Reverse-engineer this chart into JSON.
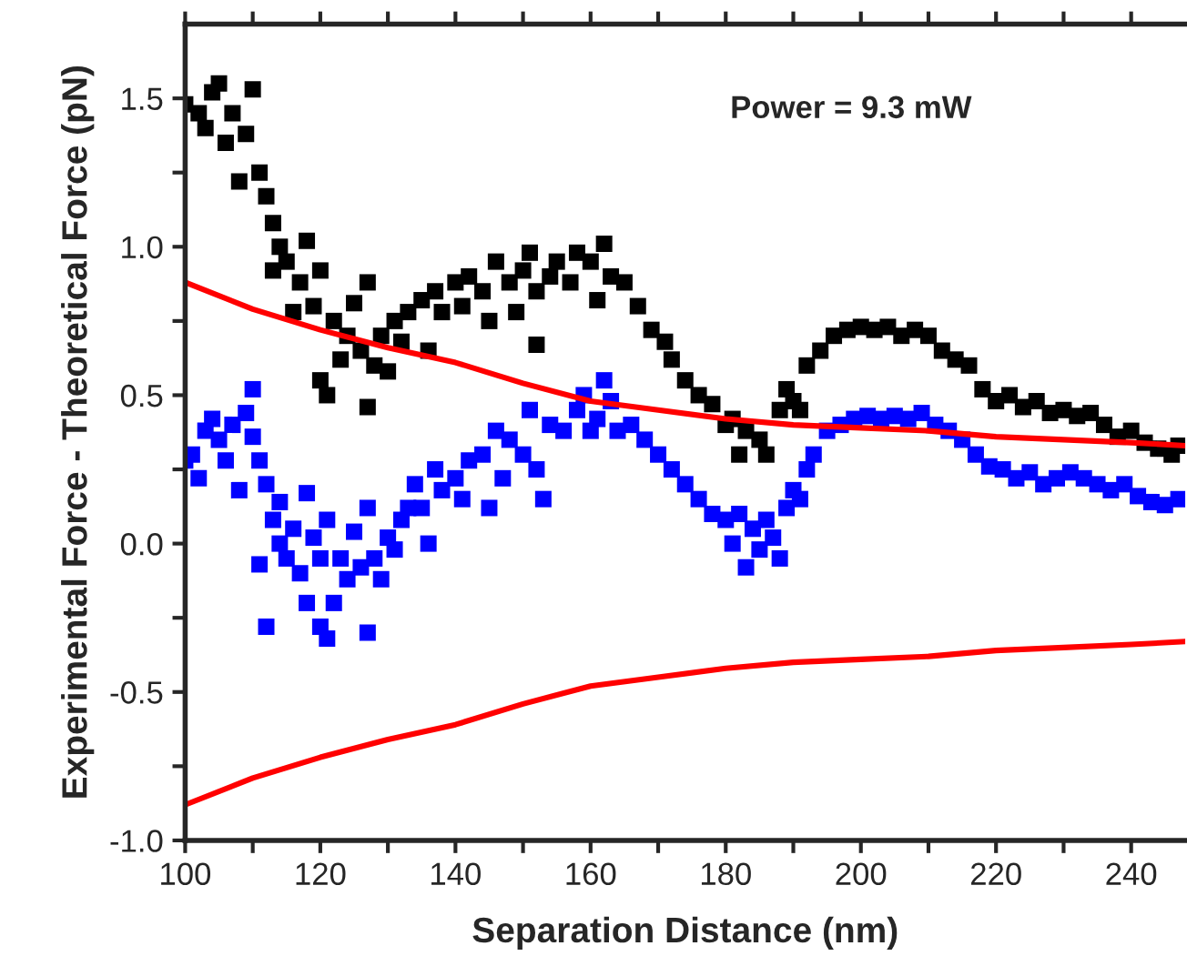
{
  "chart_data": {
    "type": "scatter",
    "xlabel": "Separation Distance (nm)",
    "ylabel": "Experimental Force - Theoretical Force (pN)",
    "annotations": [
      "Power = 9.3 mW"
    ],
    "xlim": [
      100,
      248
    ],
    "ylim": [
      -1.0,
      1.75
    ],
    "xticks": [
      100,
      {
        "value": 110,
        "label": null
      },
      120,
      {
        "value": 130,
        "label": null
      },
      140,
      {
        "value": 150,
        "label": null
      },
      160,
      {
        "value": 170,
        "label": null
      },
      180,
      {
        "value": 190,
        "label": null
      },
      200,
      {
        "value": 210,
        "label": null
      },
      220,
      {
        "value": 230,
        "label": null
      },
      240
    ],
    "yticks": [
      {
        "value": -1.0,
        "label": "-1.0"
      },
      {
        "value": -0.75,
        "label": null
      },
      {
        "value": -0.5,
        "label": "-0.5"
      },
      {
        "value": -0.25,
        "label": null
      },
      {
        "value": 0.0,
        "label": "0.0"
      },
      {
        "value": 0.25,
        "label": null
      },
      {
        "value": 0.5,
        "label": "0.5"
      },
      {
        "value": 0.75,
        "label": null
      },
      {
        "value": 1.0,
        "label": "1.0"
      },
      {
        "value": 1.25,
        "label": null
      },
      {
        "value": 1.5,
        "label": "1.5"
      }
    ],
    "grid": false,
    "marker": "square",
    "series": [
      {
        "color": "#000000",
        "x": [
          100,
          102,
          103,
          104,
          105,
          106,
          107,
          108,
          109,
          110,
          111,
          112,
          113,
          113,
          114,
          115,
          116,
          117,
          118,
          119,
          120,
          120,
          121,
          122,
          123,
          124,
          125,
          126,
          127,
          127,
          128,
          129,
          130,
          131,
          132,
          133,
          135,
          136,
          137,
          138,
          140,
          141,
          142,
          144,
          145,
          146,
          148,
          149,
          150,
          151,
          152,
          152,
          154,
          155,
          157,
          158,
          160,
          161,
          162,
          163,
          165,
          167,
          169,
          171,
          172,
          174,
          176,
          178,
          180,
          181,
          182,
          183,
          185,
          186,
          188,
          189,
          190,
          191,
          192,
          194,
          196,
          198,
          200,
          202,
          204,
          206,
          208,
          210,
          212,
          214,
          216,
          218,
          220,
          222,
          224,
          226,
          228,
          230,
          232,
          234,
          236,
          238,
          240,
          242,
          244,
          246,
          247
        ],
        "values": [
          1.48,
          1.45,
          1.4,
          1.52,
          1.55,
          1.35,
          1.45,
          1.22,
          1.38,
          1.53,
          1.25,
          1.17,
          1.08,
          0.92,
          1.0,
          0.95,
          0.78,
          0.88,
          1.02,
          0.8,
          0.92,
          0.55,
          0.5,
          0.75,
          0.62,
          0.7,
          0.81,
          0.65,
          0.88,
          0.46,
          0.6,
          0.7,
          0.58,
          0.75,
          0.68,
          0.78,
          0.82,
          0.65,
          0.85,
          0.78,
          0.88,
          0.8,
          0.9,
          0.85,
          0.75,
          0.95,
          0.88,
          0.78,
          0.92,
          0.98,
          0.85,
          0.67,
          0.9,
          0.95,
          0.88,
          0.98,
          0.95,
          0.82,
          1.01,
          0.9,
          0.88,
          0.8,
          0.72,
          0.68,
          0.62,
          0.55,
          0.5,
          0.47,
          0.4,
          0.42,
          0.3,
          0.38,
          0.35,
          0.3,
          0.45,
          0.52,
          0.48,
          0.45,
          0.6,
          0.65,
          0.7,
          0.72,
          0.73,
          0.72,
          0.73,
          0.7,
          0.72,
          0.7,
          0.65,
          0.62,
          0.6,
          0.52,
          0.48,
          0.5,
          0.46,
          0.48,
          0.44,
          0.45,
          0.43,
          0.44,
          0.4,
          0.36,
          0.38,
          0.34,
          0.32,
          0.3,
          0.33
        ]
      },
      {
        "color": "#0000ff",
        "x": [
          100,
          101,
          102,
          103,
          104,
          105,
          106,
          107,
          108,
          109,
          110,
          110,
          111,
          111,
          112,
          112,
          113,
          114,
          114,
          115,
          116,
          117,
          118,
          118,
          119,
          120,
          120,
          121,
          121,
          122,
          123,
          124,
          125,
          126,
          127,
          127,
          128,
          129,
          130,
          131,
          132,
          133,
          134,
          135,
          136,
          137,
          138,
          140,
          141,
          142,
          144,
          145,
          146,
          147,
          148,
          150,
          151,
          152,
          153,
          154,
          156,
          158,
          159,
          160,
          161,
          162,
          163,
          164,
          166,
          168,
          170,
          172,
          174,
          176,
          178,
          180,
          181,
          182,
          183,
          184,
          185,
          186,
          187,
          188,
          189,
          190,
          191,
          192,
          193,
          195,
          197,
          199,
          201,
          203,
          205,
          207,
          209,
          211,
          213,
          215,
          217,
          219,
          221,
          223,
          225,
          227,
          229,
          231,
          233,
          235,
          237,
          239,
          241,
          243,
          245,
          247
        ],
        "values": [
          0.28,
          0.3,
          0.22,
          0.38,
          0.42,
          0.35,
          0.28,
          0.4,
          0.18,
          0.44,
          0.52,
          0.36,
          0.28,
          -0.07,
          0.2,
          -0.28,
          0.08,
          0.14,
          0.0,
          -0.05,
          0.05,
          -0.1,
          0.17,
          -0.2,
          0.02,
          -0.05,
          -0.28,
          -0.32,
          0.08,
          -0.2,
          -0.05,
          -0.12,
          0.04,
          -0.08,
          0.12,
          -0.3,
          -0.05,
          -0.12,
          0.02,
          -0.02,
          0.08,
          0.12,
          0.2,
          0.12,
          0.0,
          0.25,
          0.18,
          0.22,
          0.15,
          0.28,
          0.3,
          0.12,
          0.38,
          0.22,
          0.35,
          0.3,
          0.45,
          0.25,
          0.15,
          0.4,
          0.38,
          0.45,
          0.5,
          0.38,
          0.42,
          0.55,
          0.48,
          0.38,
          0.4,
          0.35,
          0.3,
          0.25,
          0.2,
          0.15,
          0.1,
          0.08,
          0.0,
          0.1,
          -0.08,
          0.05,
          -0.02,
          0.08,
          0.02,
          -0.05,
          0.12,
          0.18,
          0.15,
          0.25,
          0.3,
          0.38,
          0.4,
          0.42,
          0.43,
          0.42,
          0.43,
          0.42,
          0.44,
          0.4,
          0.38,
          0.35,
          0.3,
          0.26,
          0.25,
          0.22,
          0.24,
          0.2,
          0.22,
          0.24,
          0.22,
          0.2,
          0.18,
          0.2,
          0.16,
          0.14,
          0.13,
          0.15
        ]
      },
      {
        "type": "line",
        "color": "#ff0000",
        "marker": "none",
        "x": [
          100,
          110,
          120,
          130,
          140,
          150,
          160,
          170,
          180,
          190,
          200,
          210,
          220,
          230,
          240,
          248
        ],
        "values": [
          0.88,
          0.79,
          0.72,
          0.66,
          0.61,
          0.54,
          0.48,
          0.45,
          0.42,
          0.4,
          0.39,
          0.38,
          0.36,
          0.35,
          0.34,
          0.33
        ]
      },
      {
        "type": "line",
        "color": "#ff0000",
        "marker": "none",
        "x": [
          100,
          110,
          120,
          130,
          140,
          150,
          160,
          170,
          180,
          190,
          200,
          210,
          220,
          230,
          240,
          248
        ],
        "values": [
          -0.88,
          -0.79,
          -0.72,
          -0.66,
          -0.61,
          -0.54,
          -0.48,
          -0.45,
          -0.42,
          -0.4,
          -0.39,
          -0.38,
          -0.36,
          -0.35,
          -0.34,
          -0.33
        ]
      }
    ]
  }
}
